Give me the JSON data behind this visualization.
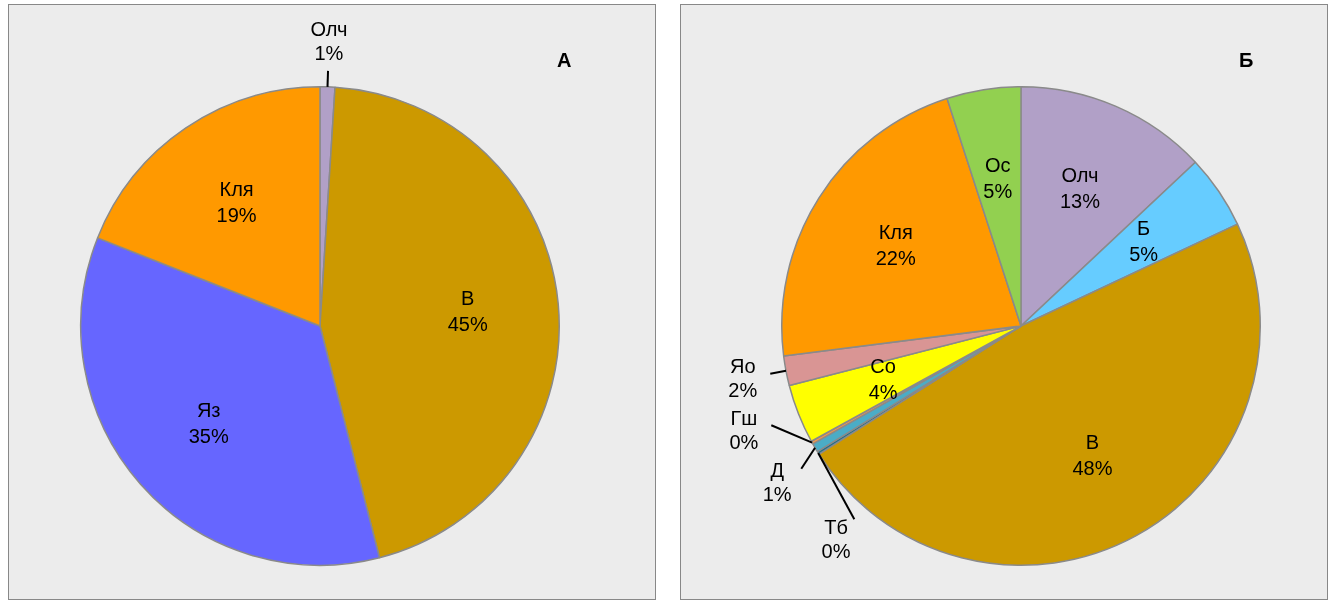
{
  "chart_data": [
    {
      "type": "pie",
      "title": "А",
      "categories": [
        "Олч",
        "В",
        "Яз",
        "Кля"
      ],
      "values": [
        1,
        45,
        35,
        19
      ],
      "value_labels": [
        "1%",
        "45%",
        "35%",
        "19%"
      ],
      "colors": [
        "#b1a0c7",
        "#cc9900",
        "#6666ff",
        "#ff9900"
      ],
      "legend": false
    },
    {
      "type": "pie",
      "title": "Б",
      "categories": [
        "Олч",
        "Б",
        "В",
        "Тб",
        "Д",
        "Гш",
        "Со",
        "Яо",
        "Кля",
        "Ос"
      ],
      "values": [
        13,
        5,
        48,
        0.2,
        0.6,
        0.2,
        4,
        2,
        22,
        5
      ],
      "value_labels": [
        "13%",
        "5%",
        "48%",
        "0%",
        "1%",
        "0%",
        "4%",
        "2%",
        "22%",
        "5%"
      ],
      "colors": [
        "#b1a0c7",
        "#66ccff",
        "#cc9900",
        "#1f6f8b",
        "#4bacc6",
        "#f79646",
        "#ffff00",
        "#d99594",
        "#ff9900",
        "#92d050"
      ],
      "legend": false
    }
  ]
}
